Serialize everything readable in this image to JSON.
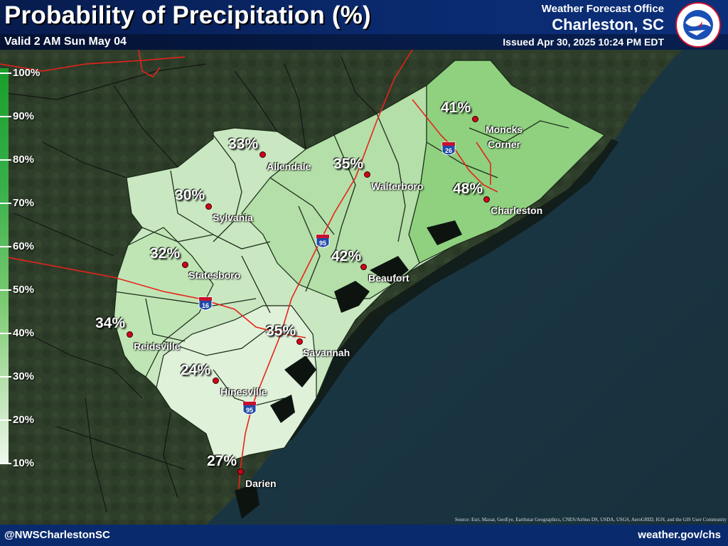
{
  "header": {
    "title": "Probability of Precipitation (%)",
    "valid": "Valid 2 AM Sun May 04",
    "office_line1": "Weather Forecast Office",
    "office_line2": "Charleston, SC",
    "issued": "Issued Apr 30, 2025 10:24 PM EDT",
    "logo_text": "NATIONAL WEATHER SERVICE"
  },
  "legend": {
    "labels": [
      "100%",
      "90%",
      "80%",
      "70%",
      "60%",
      "50%",
      "40%",
      "30%",
      "20%",
      "10%"
    ],
    "colors": [
      "#1a9e2a",
      "#38b04a",
      "#7dcb73",
      "#c5e7bd",
      "#eef8ec"
    ]
  },
  "cities": [
    {
      "name": "Allendale",
      "pop": "33%"
    },
    {
      "name": "Walterboro",
      "pop": "35%"
    },
    {
      "name": "Moncks Corner",
      "pop": "41%"
    },
    {
      "name": "Charleston",
      "pop": "48%"
    },
    {
      "name": "Sylvania",
      "pop": "30%"
    },
    {
      "name": "Statesboro",
      "pop": "32%"
    },
    {
      "name": "Beaufort",
      "pop": "42%"
    },
    {
      "name": "Reidsville",
      "pop": "34%"
    },
    {
      "name": "Savannah",
      "pop": "35%"
    },
    {
      "name": "Hinesville",
      "pop": "24%"
    },
    {
      "name": "Darien",
      "pop": "27%"
    }
  ],
  "interstates": [
    "95",
    "16",
    "26",
    "95"
  ],
  "source": "Source: Esri, Maxar, GeoEye, Earthstar Geographics, CNES/Airbus DS, USDA, USGS, AeroGRID, IGN, and the GIS User Community",
  "footer": {
    "left": "@NWSCharlestonSC",
    "right": "weather.gov/chs"
  },
  "colors": {
    "header_bg": "#0a2a6e",
    "ocean": "#1c3a4a",
    "land": "#2e3d2a",
    "city_dot": "#d0021b",
    "highway": "#e8231a"
  }
}
